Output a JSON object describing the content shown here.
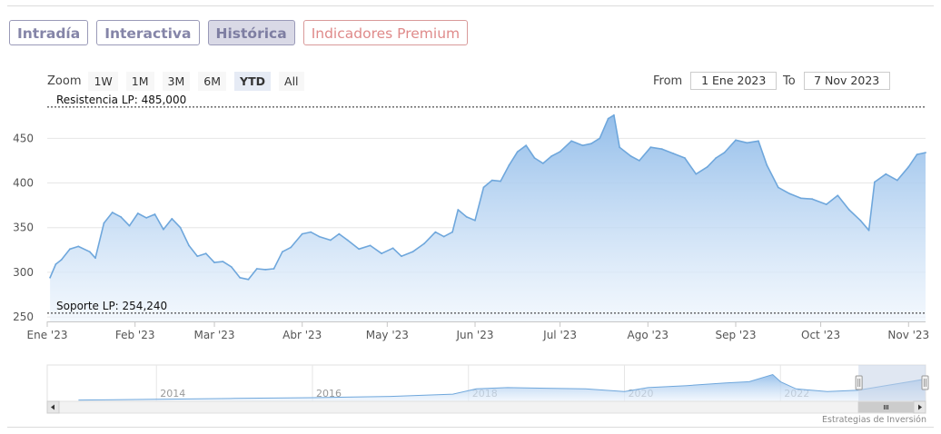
{
  "tabs": [
    {
      "label": "Intradía",
      "active": false
    },
    {
      "label": "Interactiva",
      "active": false
    },
    {
      "label": "Histórica",
      "active": true
    },
    {
      "label": "Indicadores Premium",
      "active": false
    }
  ],
  "zoom": {
    "label": "Zoom",
    "options": [
      "1W",
      "1M",
      "3M",
      "6M",
      "YTD",
      "All"
    ],
    "selected": "YTD"
  },
  "range": {
    "from_label": "From",
    "from_value": "1 Ene 2023",
    "to_label": "To",
    "to_value": "7 Nov 2023"
  },
  "credit": "Estrategias de Inversión",
  "colors": {
    "line": "#6fa7dc",
    "area_top": "#8fbbe9",
    "area_bottom": "#eef5fd",
    "tab_border": "#9a9ab8",
    "tab_active_bg": "#d9d9e6",
    "premium": "#df8a8a",
    "navigator_mask": "#c6d3e8"
  },
  "chart_data": {
    "type": "area",
    "x_tick_labels": [
      "Ene '23",
      "Feb '23",
      "Mar '23",
      "Abr '23",
      "May '23",
      "Jun '23",
      "Jul '23",
      "Ago '23",
      "Sep '23",
      "Oct '23",
      "Nov '23"
    ],
    "y_ticks": [
      250,
      300,
      350,
      400,
      450
    ],
    "ylim": [
      245,
      490
    ],
    "xlim": [
      "2023-01-01",
      "2023-11-07"
    ],
    "grid": true,
    "series": [
      {
        "points": [
          [
            "2023-01-02",
            294
          ],
          [
            "2023-01-04",
            309
          ],
          [
            "2023-01-06",
            314
          ],
          [
            "2023-01-09",
            326
          ],
          [
            "2023-01-12",
            329
          ],
          [
            "2023-01-16",
            323
          ],
          [
            "2023-01-18",
            316
          ],
          [
            "2023-01-21",
            355
          ],
          [
            "2023-01-24",
            367
          ],
          [
            "2023-01-27",
            362
          ],
          [
            "2023-01-30",
            352
          ],
          [
            "2023-02-02",
            366
          ],
          [
            "2023-02-05",
            361
          ],
          [
            "2023-02-08",
            365
          ],
          [
            "2023-02-11",
            348
          ],
          [
            "2023-02-14",
            360
          ],
          [
            "2023-02-17",
            350
          ],
          [
            "2023-02-20",
            330
          ],
          [
            "2023-02-23",
            318
          ],
          [
            "2023-02-26",
            321
          ],
          [
            "2023-03-01",
            311
          ],
          [
            "2023-03-04",
            312
          ],
          [
            "2023-03-07",
            306
          ],
          [
            "2023-03-10",
            294
          ],
          [
            "2023-03-13",
            292
          ],
          [
            "2023-03-16",
            304
          ],
          [
            "2023-03-19",
            303
          ],
          [
            "2023-03-22",
            304
          ],
          [
            "2023-03-25",
            323
          ],
          [
            "2023-03-28",
            328
          ],
          [
            "2023-04-01",
            343
          ],
          [
            "2023-04-04",
            345
          ],
          [
            "2023-04-07",
            340
          ],
          [
            "2023-04-11",
            336
          ],
          [
            "2023-04-14",
            343
          ],
          [
            "2023-04-17",
            336
          ],
          [
            "2023-04-21",
            326
          ],
          [
            "2023-04-25",
            330
          ],
          [
            "2023-04-29",
            321
          ],
          [
            "2023-05-03",
            327
          ],
          [
            "2023-05-06",
            318
          ],
          [
            "2023-05-10",
            323
          ],
          [
            "2023-05-14",
            332
          ],
          [
            "2023-05-18",
            345
          ],
          [
            "2023-05-21",
            340
          ],
          [
            "2023-05-24",
            345
          ],
          [
            "2023-05-26",
            370
          ],
          [
            "2023-05-29",
            362
          ],
          [
            "2023-06-01",
            358
          ],
          [
            "2023-06-04",
            395
          ],
          [
            "2023-06-07",
            403
          ],
          [
            "2023-06-10",
            402
          ],
          [
            "2023-06-13",
            420
          ],
          [
            "2023-06-16",
            435
          ],
          [
            "2023-06-19",
            442
          ],
          [
            "2023-06-22",
            428
          ],
          [
            "2023-06-25",
            422
          ],
          [
            "2023-06-28",
            430
          ],
          [
            "2023-07-01",
            435
          ],
          [
            "2023-07-05",
            447
          ],
          [
            "2023-07-09",
            442
          ],
          [
            "2023-07-12",
            444
          ],
          [
            "2023-07-15",
            450
          ],
          [
            "2023-07-18",
            472
          ],
          [
            "2023-07-20",
            476
          ],
          [
            "2023-07-22",
            440
          ],
          [
            "2023-07-26",
            430
          ],
          [
            "2023-07-29",
            425
          ],
          [
            "2023-08-02",
            440
          ],
          [
            "2023-08-06",
            438
          ],
          [
            "2023-08-10",
            433
          ],
          [
            "2023-08-14",
            428
          ],
          [
            "2023-08-18",
            410
          ],
          [
            "2023-08-22",
            418
          ],
          [
            "2023-08-25",
            428
          ],
          [
            "2023-08-28",
            434
          ],
          [
            "2023-09-01",
            448
          ],
          [
            "2023-09-05",
            445
          ],
          [
            "2023-09-09",
            447
          ],
          [
            "2023-09-12",
            420
          ],
          [
            "2023-09-16",
            395
          ],
          [
            "2023-09-20",
            388
          ],
          [
            "2023-09-24",
            383
          ],
          [
            "2023-09-28",
            382
          ],
          [
            "2023-10-03",
            376
          ],
          [
            "2023-10-07",
            386
          ],
          [
            "2023-10-11",
            370
          ],
          [
            "2023-10-15",
            358
          ],
          [
            "2023-10-18",
            347
          ],
          [
            "2023-10-20",
            401
          ],
          [
            "2023-10-24",
            410
          ],
          [
            "2023-10-28",
            403
          ],
          [
            "2023-11-01",
            418
          ],
          [
            "2023-11-04",
            432
          ],
          [
            "2023-11-07",
            434
          ]
        ]
      }
    ],
    "annotations": [
      {
        "text": "Resistencia LP: 485,000",
        "value": 485
      },
      {
        "text": "Soporte LP: 254,240",
        "value": 254.24
      }
    ],
    "navigator": {
      "x_tick_labels": [
        "2014",
        "2016",
        "2018",
        "2020",
        "2022"
      ],
      "points": [
        [
          2013.0,
          0.04
        ],
        [
          2014.0,
          0.06
        ],
        [
          2015.0,
          0.09
        ],
        [
          2016.0,
          0.11
        ],
        [
          2017.0,
          0.15
        ],
        [
          2017.8,
          0.22
        ],
        [
          2018.1,
          0.38
        ],
        [
          2018.5,
          0.42
        ],
        [
          2019.0,
          0.4
        ],
        [
          2019.5,
          0.38
        ],
        [
          2020.0,
          0.3
        ],
        [
          2020.3,
          0.42
        ],
        [
          2020.8,
          0.48
        ],
        [
          2021.3,
          0.56
        ],
        [
          2021.6,
          0.6
        ],
        [
          2021.9,
          0.82
        ],
        [
          2022.0,
          0.6
        ],
        [
          2022.2,
          0.38
        ],
        [
          2022.6,
          0.3
        ],
        [
          2023.0,
          0.34
        ],
        [
          2023.4,
          0.5
        ],
        [
          2023.7,
          0.62
        ],
        [
          2023.85,
          0.68
        ]
      ],
      "selected_range": [
        "2023-01-01",
        "2023-11-07"
      ]
    }
  }
}
